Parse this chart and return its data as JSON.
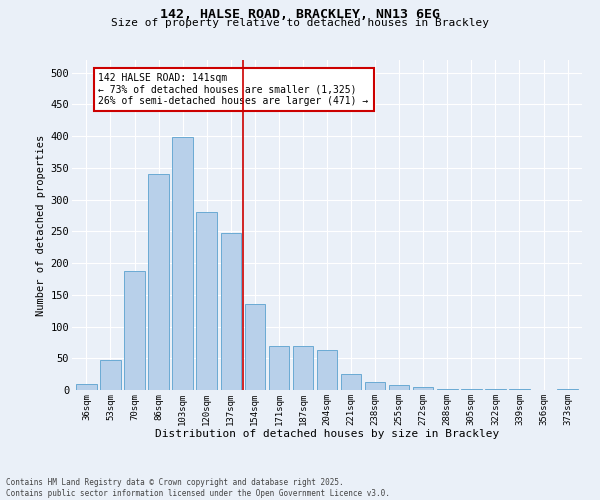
{
  "title_line1": "142, HALSE ROAD, BRACKLEY, NN13 6EG",
  "title_line2": "Size of property relative to detached houses in Brackley",
  "xlabel": "Distribution of detached houses by size in Brackley",
  "ylabel": "Number of detached properties",
  "bar_labels": [
    "36sqm",
    "53sqm",
    "70sqm",
    "86sqm",
    "103sqm",
    "120sqm",
    "137sqm",
    "154sqm",
    "171sqm",
    "187sqm",
    "204sqm",
    "221sqm",
    "238sqm",
    "255sqm",
    "272sqm",
    "288sqm",
    "305sqm",
    "322sqm",
    "339sqm",
    "356sqm",
    "373sqm"
  ],
  "bar_values": [
    10,
    47,
    187,
    340,
    398,
    280,
    247,
    135,
    70,
    70,
    63,
    25,
    12,
    8,
    5,
    2,
    1,
    1,
    1,
    0,
    2
  ],
  "bar_color": "#b8d0ea",
  "bar_edgecolor": "#6aaad4",
  "vline_x_idx": 6,
  "vline_color": "#cc0000",
  "annotation_text": "142 HALSE ROAD: 141sqm\n← 73% of detached houses are smaller (1,325)\n26% of semi-detached houses are larger (471) →",
  "annotation_box_color": "#ffffff",
  "annotation_box_edgecolor": "#cc0000",
  "ylim": [
    0,
    520
  ],
  "yticks": [
    0,
    50,
    100,
    150,
    200,
    250,
    300,
    350,
    400,
    450,
    500
  ],
  "background_color": "#eaf0f8",
  "grid_color": "#ffffff",
  "footnote": "Contains HM Land Registry data © Crown copyright and database right 2025.\nContains public sector information licensed under the Open Government Licence v3.0."
}
